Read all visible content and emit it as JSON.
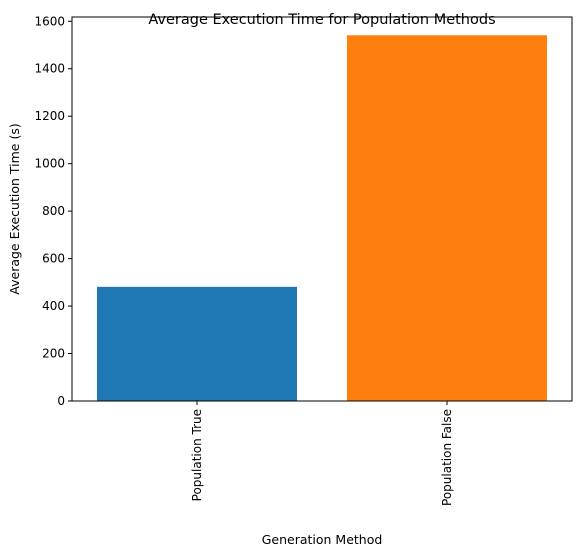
{
  "chart_data": {
    "type": "bar",
    "title": "Average Execution Time for Population Methods",
    "xlabel": "Generation Method",
    "ylabel": "Average Execution Time (s)",
    "categories": [
      "Population True",
      "Population False"
    ],
    "values": [
      481,
      1541
    ],
    "colors": [
      "#1f77b4",
      "#ff7f0e"
    ],
    "ylim": [
      0,
      1618
    ],
    "yticks": [
      0,
      200,
      400,
      600,
      800,
      1000,
      1200,
      1400,
      1600
    ],
    "grid": false,
    "x_tick_rotation": 90
  }
}
